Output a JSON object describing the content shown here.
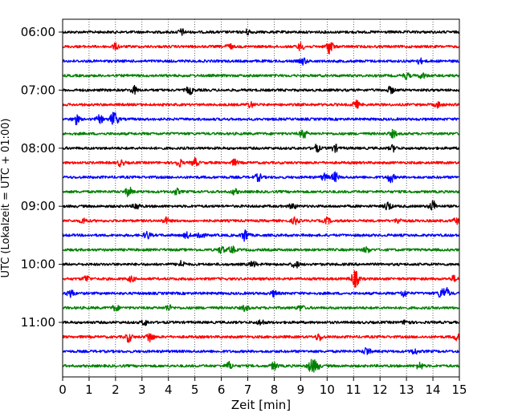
{
  "chart_data": {
    "type": "line",
    "subtype": "helicorder-seismogram",
    "xlabel": "Zeit  [min]",
    "ylabel": "UTC (Lokalzeit = UTC + 01:00)",
    "xlim": [
      0,
      15
    ],
    "x_ticks": [
      "0",
      "1",
      "2",
      "3",
      "4",
      "5",
      "6",
      "7",
      "8",
      "9",
      "10",
      "11",
      "12",
      "13",
      "14",
      "15"
    ],
    "grid": "vertical dotted lines at each minute",
    "y_tick_labels": [
      "06:00",
      "07:00",
      "08:00",
      "09:00",
      "10:00",
      "11:00"
    ],
    "trace_minutes_per_line": 15,
    "trace_colors": [
      "#000000",
      "#ff0000",
      "#0000ff",
      "#008000"
    ],
    "traces": [
      {
        "start": "06:00",
        "color_index": 0,
        "events": [
          [
            4.5,
            1.6
          ],
          [
            7.0,
            1.4
          ]
        ]
      },
      {
        "start": "06:15",
        "color_index": 1,
        "events": [
          [
            2.0,
            1.5
          ],
          [
            6.3,
            1.4
          ],
          [
            9.0,
            2.0
          ],
          [
            10.1,
            4.0
          ]
        ]
      },
      {
        "start": "06:30",
        "color_index": 2,
        "events": [
          [
            9.1,
            1.8
          ],
          [
            13.5,
            1.4
          ]
        ]
      },
      {
        "start": "06:45",
        "color_index": 3,
        "events": [
          [
            13.0,
            1.6
          ],
          [
            13.6,
            1.5
          ]
        ]
      },
      {
        "start": "07:00",
        "color_index": 0,
        "events": [
          [
            2.7,
            2.0
          ],
          [
            4.8,
            2.2
          ],
          [
            12.4,
            1.8
          ]
        ]
      },
      {
        "start": "07:15",
        "color_index": 1,
        "events": [
          [
            7.1,
            1.5
          ],
          [
            11.1,
            2.0
          ],
          [
            14.2,
            1.5
          ]
        ]
      },
      {
        "start": "07:30",
        "color_index": 2,
        "events": [
          [
            0.5,
            2.6
          ],
          [
            1.4,
            2.0
          ],
          [
            1.9,
            2.5
          ],
          [
            2.0,
            2.3
          ]
        ]
      },
      {
        "start": "07:45",
        "color_index": 3,
        "events": [
          [
            9.1,
            2.6
          ],
          [
            12.5,
            2.0
          ]
        ]
      },
      {
        "start": "08:00",
        "color_index": 0,
        "events": [
          [
            9.6,
            2.0
          ],
          [
            10.3,
            1.8
          ],
          [
            12.5,
            1.6
          ]
        ]
      },
      {
        "start": "08:15",
        "color_index": 1,
        "events": [
          [
            2.2,
            1.8
          ],
          [
            4.4,
            2.0
          ],
          [
            5.0,
            2.2
          ],
          [
            6.5,
            1.5
          ]
        ]
      },
      {
        "start": "08:30",
        "color_index": 2,
        "events": [
          [
            7.4,
            2.0
          ],
          [
            9.9,
            1.8
          ],
          [
            10.3,
            2.5
          ],
          [
            12.4,
            2.8
          ]
        ]
      },
      {
        "start": "08:45",
        "color_index": 3,
        "events": [
          [
            2.5,
            2.5
          ],
          [
            4.3,
            1.5
          ],
          [
            6.5,
            1.4
          ]
        ]
      },
      {
        "start": "09:00",
        "color_index": 0,
        "events": [
          [
            2.8,
            1.8
          ],
          [
            8.7,
            1.6
          ],
          [
            12.3,
            2.5
          ],
          [
            14.0,
            3.0
          ]
        ]
      },
      {
        "start": "09:15",
        "color_index": 1,
        "events": [
          [
            0.8,
            1.4
          ],
          [
            3.9,
            1.6
          ],
          [
            8.8,
            2.0
          ],
          [
            10.0,
            1.6
          ],
          [
            12.7,
            1.5
          ],
          [
            14.9,
            1.6
          ]
        ]
      },
      {
        "start": "09:30",
        "color_index": 2,
        "events": [
          [
            3.2,
            2.0
          ],
          [
            5.2,
            2.5
          ],
          [
            6.9,
            3.5
          ],
          [
            4.7,
            1.5
          ]
        ]
      },
      {
        "start": "09:45",
        "color_index": 3,
        "events": [
          [
            6.0,
            2.0
          ],
          [
            6.4,
            1.8
          ],
          [
            11.5,
            1.5
          ]
        ]
      },
      {
        "start": "10:00",
        "color_index": 0,
        "events": [
          [
            4.5,
            1.8
          ],
          [
            7.2,
            1.6
          ],
          [
            8.8,
            2.0
          ]
        ]
      },
      {
        "start": "10:15",
        "color_index": 1,
        "events": [
          [
            0.9,
            1.8
          ],
          [
            2.6,
            1.5
          ],
          [
            11.1,
            3.0
          ],
          [
            11.0,
            2.2
          ],
          [
            14.8,
            1.5
          ]
        ]
      },
      {
        "start": "10:30",
        "color_index": 2,
        "events": [
          [
            0.3,
            2.2
          ],
          [
            8.0,
            1.6
          ],
          [
            12.9,
            1.8
          ],
          [
            14.5,
            2.8
          ],
          [
            14.3,
            2.2
          ]
        ]
      },
      {
        "start": "10:45",
        "color_index": 3,
        "events": [
          [
            2.0,
            1.6
          ],
          [
            4.0,
            1.6
          ],
          [
            6.9,
            1.5
          ],
          [
            9.0,
            1.5
          ]
        ]
      },
      {
        "start": "11:00",
        "color_index": 0,
        "events": [
          [
            3.1,
            1.5
          ],
          [
            7.5,
            1.5
          ],
          [
            13.0,
            1.5
          ]
        ]
      },
      {
        "start": "11:15",
        "color_index": 1,
        "events": [
          [
            2.5,
            2.5
          ],
          [
            3.3,
            3.0
          ],
          [
            9.7,
            2.0
          ],
          [
            14.9,
            1.6
          ]
        ]
      },
      {
        "start": "11:30",
        "color_index": 2,
        "events": [
          [
            11.5,
            2.2
          ],
          [
            13.3,
            1.6
          ]
        ]
      },
      {
        "start": "11:45",
        "color_index": 3,
        "events": [
          [
            6.3,
            2.0
          ],
          [
            8.0,
            2.0
          ],
          [
            9.4,
            3.5
          ],
          [
            9.6,
            2.5
          ],
          [
            13.5,
            2.0
          ]
        ]
      }
    ]
  }
}
